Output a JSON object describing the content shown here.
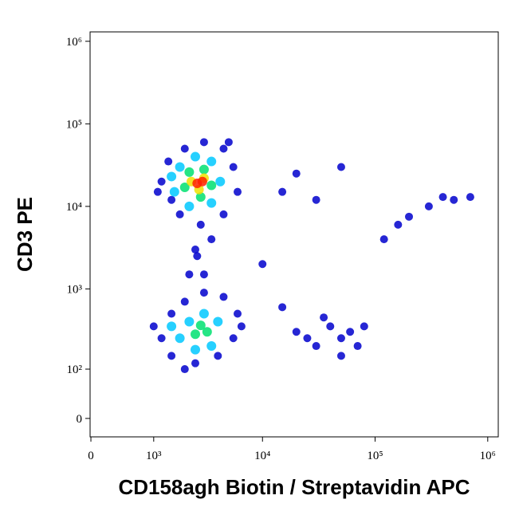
{
  "chart_data": {
    "type": "scatter",
    "x_label": "CD158agh Biotin / Streptavidin APC",
    "y_label": "CD3 PE",
    "x_scale": "biexponential",
    "x_linear_width": 300,
    "y_scale": "biexponential",
    "y_linear_width": 27,
    "xlim": [
      -10,
      1240000
    ],
    "ylim": [
      -29,
      1300000
    ],
    "xticks": [
      0,
      {
        "value": 1000,
        "label": "10³"
      },
      {
        "value": 10000,
        "label": "10⁴"
      },
      {
        "value": 100000,
        "label": "10⁵"
      },
      {
        "value": 1000000,
        "label": "10⁶"
      }
    ],
    "yticks": [
      0,
      {
        "value": 100,
        "label": "10²"
      },
      {
        "value": 1000,
        "label": "10³"
      },
      {
        "value": 10000,
        "label": "10⁴"
      },
      {
        "value": 100000,
        "label": "10⁵"
      },
      {
        "value": 1000000,
        "label": "10⁶"
      }
    ],
    "series": [
      {
        "color": "#0000cc",
        "x": [
          1500,
          1200,
          1400,
          2000,
          3000,
          4500,
          5500,
          6000,
          4500,
          2800,
          1800,
          1100,
          3500,
          2500,
          2200,
          3000,
          2600,
          5000,
          1200,
          1500,
          2000,
          3000,
          4500,
          6000,
          5500,
          4000,
          2500,
          1500,
          1000,
          2000,
          6500,
          20000,
          30000,
          40000,
          50000,
          60000,
          70000,
          35000,
          50000,
          80000,
          25000,
          120000,
          160000,
          200000,
          300000,
          400000,
          500000,
          15000,
          20000,
          30000,
          50000,
          700000,
          10000,
          15000
        ],
        "y": [
          12000,
          20000,
          35000,
          50000,
          60000,
          50000,
          30000,
          15000,
          8000,
          6000,
          8000,
          15000,
          4000,
          3000,
          1500,
          1500,
          2500,
          60000,
          250,
          500,
          700,
          900,
          800,
          500,
          250,
          150,
          120,
          150,
          350,
          100,
          350,
          300,
          200,
          350,
          250,
          300,
          200,
          450,
          150,
          350,
          250,
          4000,
          6000,
          7500,
          10000,
          13000,
          12000,
          15000,
          25000,
          12000,
          30000,
          13000,
          2000,
          600
        ]
      },
      {
        "color": "#00c8ff",
        "x": [
          1600,
          1800,
          2500,
          3500,
          4200,
          3500,
          2200,
          1500,
          1800,
          2200,
          3000,
          4000,
          3500,
          2500,
          1500
        ],
        "y": [
          15000,
          30000,
          40000,
          35000,
          20000,
          11000,
          10000,
          23000,
          250,
          400,
          500,
          400,
          200,
          180,
          350
        ]
      },
      {
        "color": "#00e070",
        "x": [
          2000,
          2200,
          3000,
          3500,
          2800,
          2500,
          3200,
          2800
        ],
        "y": [
          17000,
          26000,
          28000,
          18000,
          13000,
          280,
          300,
          360
        ]
      },
      {
        "color": "#f0e000",
        "x": [
          2300,
          3000,
          2700
        ],
        "y": [
          20000,
          22000,
          16000
        ]
      },
      {
        "color": "#ff2000",
        "x": [
          2600,
          2900
        ],
        "y": [
          19000,
          20000
        ]
      }
    ]
  }
}
